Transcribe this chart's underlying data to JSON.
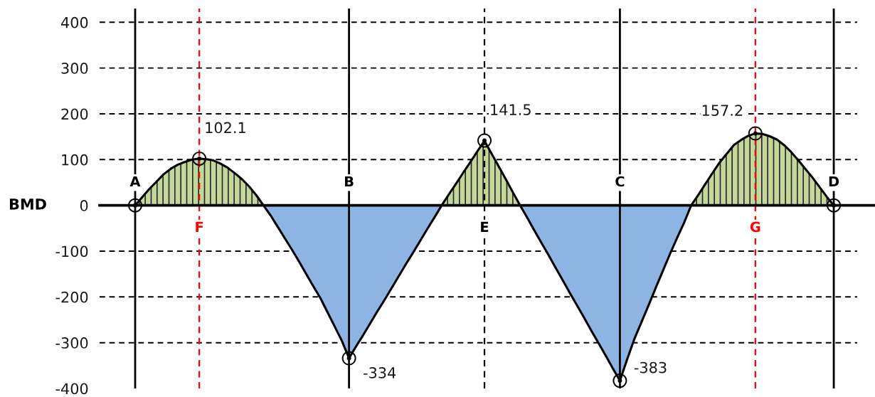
{
  "chart_data": {
    "type": "line",
    "ylabel": "BMD",
    "categories": [
      "A",
      null,
      null,
      null,
      null,
      null,
      null,
      null,
      null,
      "F",
      null,
      null,
      null,
      null,
      null,
      null,
      null,
      null,
      null,
      null,
      null,
      null,
      null,
      null,
      null,
      null,
      null,
      null,
      null,
      null,
      "B",
      null,
      null,
      null,
      null,
      null,
      null,
      null,
      null,
      null,
      null,
      null,
      null,
      null,
      null,
      null,
      null,
      null,
      null,
      "E",
      null,
      null,
      null,
      null,
      null,
      null,
      null,
      null,
      null,
      null,
      null,
      null,
      null,
      null,
      null,
      null,
      null,
      null,
      "C",
      null,
      null,
      null,
      null,
      null,
      null,
      null,
      null,
      null,
      null,
      null,
      null,
      null,
      null,
      null,
      null,
      null,
      null,
      "G",
      null,
      null,
      null,
      null,
      null,
      null,
      null,
      null,
      null,
      null,
      "D"
    ],
    "series": [
      {
        "type": "area",
        "color": "#c4d79b",
        "values": [
          0,
          18,
          36,
          52,
          68,
          80,
          89,
          95,
          100,
          102,
          101,
          98,
          91,
          82,
          70,
          57,
          41,
          22,
          0,
          null,
          null,
          null,
          null,
          null,
          null,
          null,
          null,
          null,
          null,
          null,
          null,
          null,
          null,
          null,
          null,
          null,
          null,
          null,
          null,
          null,
          null,
          null,
          null,
          0,
          24,
          47,
          71,
          94,
          118,
          141,
          113,
          85,
          57,
          28,
          0,
          null,
          null,
          null,
          null,
          null,
          null,
          null,
          null,
          null,
          null,
          null,
          null,
          null,
          null,
          null,
          null,
          null,
          null,
          null,
          null,
          null,
          null,
          null,
          0,
          23,
          47,
          71,
          94,
          113,
          132,
          143,
          152,
          157,
          156,
          151,
          144,
          132,
          117,
          99,
          80,
          61,
          40,
          19,
          0
        ]
      },
      {
        "type": "area",
        "color": "#8db4e2",
        "values": [
          null,
          null,
          null,
          null,
          null,
          null,
          null,
          null,
          null,
          null,
          null,
          null,
          null,
          null,
          null,
          null,
          null,
          null,
          0,
          -22,
          -47,
          -72,
          -97,
          -123,
          -150,
          -177,
          -203,
          -234,
          -265,
          -296,
          -334,
          -308,
          -283,
          -257,
          -231,
          -206,
          -180,
          -154,
          -128,
          -103,
          -77,
          -51,
          -26,
          0,
          null,
          null,
          null,
          null,
          null,
          null,
          null,
          null,
          null,
          null,
          0,
          -27,
          -55,
          -82,
          -109,
          -137,
          -164,
          -192,
          -219,
          -246,
          -274,
          -301,
          -328,
          -356,
          -383,
          -337,
          -293,
          -256,
          -219,
          -181,
          -144,
          -107,
          -72,
          -38,
          0,
          null,
          null,
          null,
          null,
          null,
          null,
          null,
          null,
          null,
          null,
          null,
          null,
          null,
          null,
          null,
          null,
          null,
          null,
          null,
          null
        ]
      },
      {
        "color": "#000000",
        "values": [
          0,
          18,
          36,
          52,
          68,
          80,
          89,
          95,
          100,
          102,
          101,
          98,
          91,
          82,
          70,
          57,
          41,
          22,
          0,
          -22,
          -47,
          -72,
          -97,
          -123,
          -150,
          -177,
          -203,
          -234,
          -265,
          -296,
          -334,
          -308,
          -283,
          -257,
          -231,
          -206,
          -180,
          -154,
          -128,
          -103,
          -77,
          -51,
          -26,
          0,
          24,
          47,
          71,
          94,
          118,
          141,
          113,
          85,
          57,
          28,
          0,
          -27,
          -55,
          -82,
          -109,
          -137,
          -164,
          -192,
          -219,
          -246,
          -274,
          -301,
          -328,
          -356,
          -383,
          -337,
          -293,
          -256,
          -219,
          -181,
          -144,
          -107,
          -72,
          -38,
          0,
          23,
          47,
          71,
          94,
          113,
          132,
          143,
          152,
          157,
          156,
          151,
          144,
          132,
          117,
          99,
          80,
          61,
          40,
          19,
          0
        ]
      },
      {
        "type": "scatter",
        "color": "#000000",
        "marker": "circle",
        "x": [
          "A",
          "F",
          "B",
          "E",
          "C",
          "G",
          "D"
        ],
        "values": [
          0,
          102.1,
          -334,
          141.5,
          -383,
          157.2,
          0
        ],
        "value_labels": [
          null,
          "102.1",
          "-334",
          "141.5",
          "-383",
          "157.2",
          null
        ]
      }
    ],
    "ylim": [
      -400,
      430
    ],
    "yticks": [
      -400,
      -300,
      -200,
      -100,
      0,
      100,
      200,
      300,
      400
    ],
    "grid": "y",
    "ref_lines": [
      {
        "axis": "x",
        "value": "A",
        "color": "#000000",
        "line_style": "solid"
      },
      {
        "axis": "x",
        "value": "F",
        "color": "#ff0000",
        "line_style": "dashed"
      },
      {
        "axis": "x",
        "value": "B",
        "color": "#000000",
        "line_style": "solid"
      },
      {
        "axis": "x",
        "value": "E",
        "color": "#000000",
        "line_style": "dashed"
      },
      {
        "axis": "x",
        "value": "C",
        "color": "#000000",
        "line_style": "solid"
      },
      {
        "axis": "x",
        "value": "G",
        "color": "#ff0000",
        "line_style": "dashed"
      },
      {
        "axis": "x",
        "value": "D",
        "color": "#000000",
        "line_style": "solid"
      }
    ]
  }
}
